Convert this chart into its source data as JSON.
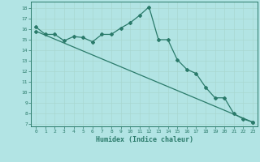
{
  "xlabel": "Humidex (Indice chaleur)",
  "background_color": "#b2e4e4",
  "grid_color": "#c8e8e8",
  "line_color": "#2a7a6a",
  "xlim": [
    -0.5,
    23.5
  ],
  "ylim": [
    6.8,
    18.6
  ],
  "yticks": [
    7,
    8,
    9,
    10,
    11,
    12,
    13,
    14,
    15,
    16,
    17,
    18
  ],
  "xticks": [
    0,
    1,
    2,
    3,
    4,
    5,
    6,
    7,
    8,
    9,
    10,
    11,
    12,
    13,
    14,
    15,
    16,
    17,
    18,
    19,
    20,
    21,
    22,
    23
  ],
  "line1_x": [
    0,
    1,
    2,
    3,
    4,
    5,
    6,
    7,
    8,
    9,
    10,
    11,
    12,
    13,
    14,
    15,
    16,
    17,
    18,
    19,
    20,
    21,
    22,
    23
  ],
  "line1_y": [
    16.2,
    15.5,
    15.5,
    14.9,
    15.3,
    15.2,
    14.8,
    15.5,
    15.5,
    16.1,
    16.6,
    17.3,
    18.1,
    15.0,
    15.0,
    13.1,
    12.2,
    11.8,
    10.5,
    9.5,
    9.5,
    8.0,
    7.5,
    7.2
  ],
  "line2_x": [
    0,
    23
  ],
  "line2_y": [
    15.8,
    7.2
  ]
}
